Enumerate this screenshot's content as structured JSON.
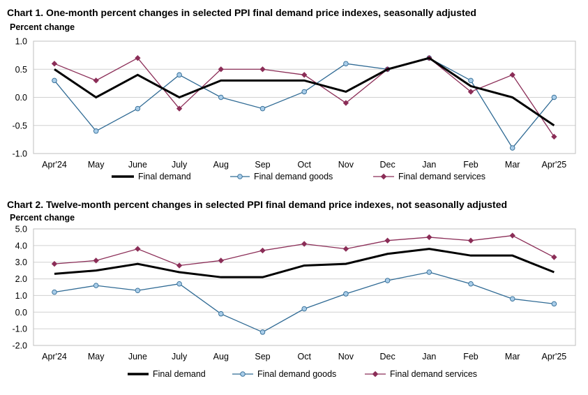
{
  "chart_data": [
    {
      "type": "line",
      "title": "Chart 1. One-month percent changes in selected PPI final demand price indexes, seasonally adjusted",
      "ylabel": "Percent change",
      "xlabel": "",
      "categories": [
        "Apr'24",
        "May",
        "June",
        "July",
        "Aug",
        "Sep",
        "Oct",
        "Nov",
        "Dec",
        "Jan",
        "Feb",
        "Mar",
        "Apr'25"
      ],
      "ylim": [
        -1.0,
        1.0
      ],
      "yticks": [
        "1.0",
        "0.5",
        "0.0",
        "-0.5",
        "-1.0"
      ],
      "ytick_values": [
        1.0,
        0.5,
        0.0,
        -0.5,
        -1.0
      ],
      "grid": true,
      "legend_position": "bottom",
      "series": [
        {
          "name": "Final demand",
          "color": "#000000",
          "marker": "none",
          "values": [
            0.5,
            0.0,
            0.4,
            0.0,
            0.3,
            0.3,
            0.3,
            0.1,
            0.5,
            0.7,
            0.2,
            0.0,
            -0.5
          ]
        },
        {
          "name": "Final demand goods",
          "color": "#2f6a94",
          "marker": "circle",
          "marker_fill": "#a9cde9",
          "values": [
            0.3,
            -0.6,
            -0.2,
            0.4,
            0.0,
            -0.2,
            0.1,
            0.6,
            0.5,
            0.7,
            0.3,
            -0.9,
            0.0
          ]
        },
        {
          "name": "Final demand services",
          "color": "#8b2d57",
          "marker": "diamond",
          "marker_fill": "#8b2d57",
          "values": [
            0.6,
            0.3,
            0.7,
            -0.2,
            0.5,
            0.5,
            0.4,
            -0.1,
            0.5,
            0.7,
            0.1,
            0.4,
            -0.7
          ]
        }
      ]
    },
    {
      "type": "line",
      "title": "Chart 2. Twelve-month percent changes in selected PPI final demand price indexes, not seasonally adjusted",
      "ylabel": "Percent change",
      "xlabel": "",
      "categories": [
        "Apr'24",
        "May",
        "June",
        "July",
        "Aug",
        "Sep",
        "Oct",
        "Nov",
        "Dec",
        "Jan",
        "Feb",
        "Mar",
        "Apr'25"
      ],
      "ylim": [
        -2.0,
        5.0
      ],
      "yticks": [
        "5.0",
        "4.0",
        "3.0",
        "2.0",
        "1.0",
        "0.0",
        "-1.0",
        "-2.0"
      ],
      "ytick_values": [
        5.0,
        4.0,
        3.0,
        2.0,
        1.0,
        0.0,
        -1.0,
        -2.0
      ],
      "grid": true,
      "legend_position": "bottom",
      "series": [
        {
          "name": "Final demand",
          "color": "#000000",
          "marker": "none",
          "values": [
            2.3,
            2.5,
            2.9,
            2.4,
            2.1,
            2.1,
            2.8,
            2.9,
            3.5,
            3.8,
            3.4,
            3.4,
            2.4
          ]
        },
        {
          "name": "Final demand goods",
          "color": "#2f6a94",
          "marker": "circle",
          "marker_fill": "#a9cde9",
          "values": [
            1.2,
            1.6,
            1.3,
            1.7,
            -0.1,
            -1.2,
            0.2,
            1.1,
            1.9,
            2.4,
            1.7,
            0.8,
            0.5
          ]
        },
        {
          "name": "Final demand services",
          "color": "#8b2d57",
          "marker": "diamond",
          "marker_fill": "#8b2d57",
          "values": [
            2.9,
            3.1,
            3.8,
            2.8,
            3.1,
            3.7,
            4.1,
            3.8,
            4.3,
            4.5,
            4.3,
            4.6,
            3.3
          ]
        }
      ]
    }
  ]
}
